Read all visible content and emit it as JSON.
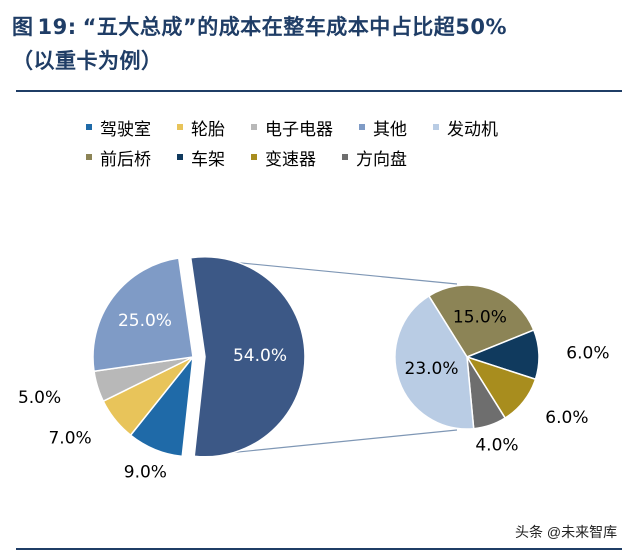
{
  "title": {
    "figure_label": "图",
    "figure_number": "19:",
    "text_line1": "“五大总成”的成本在整车成本中占比超50%",
    "text_line2": "（以重卡为例）"
  },
  "watermark": "头条 @未来智库",
  "colors": {
    "title": "#1f3d66",
    "rule": "#1f3d66",
    "connector": "#7f97b5"
  },
  "chart_data": [
    {
      "type": "pie",
      "name": "main",
      "slices": [
        {
          "label": "五大总成",
          "value": 54.0,
          "display": "54.0%",
          "color": "#3c5886",
          "exploded_into_secondary": true
        },
        {
          "label": "驾驶室",
          "value": 9.0,
          "display": "9.0%",
          "color": "#1f6aa8"
        },
        {
          "label": "轮胎",
          "value": 7.0,
          "display": "7.0%",
          "color": "#e8c45a"
        },
        {
          "label": "电子电器",
          "value": 5.0,
          "display": "5.0%",
          "color": "#b8b8b8"
        },
        {
          "label": "其他",
          "value": 25.0,
          "display": "25.0%",
          "color": "#7f9bc6"
        }
      ]
    },
    {
      "type": "pie",
      "name": "secondary",
      "slices": [
        {
          "label": "前后桥",
          "value": 15.0,
          "display": "15.0%",
          "color": "#8c8456"
        },
        {
          "label": "车架",
          "value": 6.0,
          "display": "6.0%",
          "color": "#103a5e"
        },
        {
          "label": "变速器",
          "value": 6.0,
          "display": "6.0%",
          "color": "#a88d1e"
        },
        {
          "label": "方向盘",
          "value": 4.0,
          "display": "4.0%",
          "color": "#6e6e6e"
        },
        {
          "label": "发动机",
          "value": 23.0,
          "display": "23.0%",
          "color": "#b9cce4"
        }
      ]
    }
  ],
  "legend": {
    "rows": [
      [
        {
          "label": "驾驶室",
          "color": "#1f6aa8"
        },
        {
          "label": "轮胎",
          "color": "#e8c45a"
        },
        {
          "label": "电子电器",
          "color": "#b8b8b8"
        },
        {
          "label": "其他",
          "color": "#7f9bc6"
        },
        {
          "label": "发动机",
          "color": "#b9cce4"
        }
      ],
      [
        {
          "label": "前后桥",
          "color": "#8c8456"
        },
        {
          "label": "车架",
          "color": "#103a5e"
        },
        {
          "label": "变速器",
          "color": "#a88d1e"
        },
        {
          "label": "方向盘",
          "color": "#6e6e6e"
        }
      ]
    ]
  }
}
